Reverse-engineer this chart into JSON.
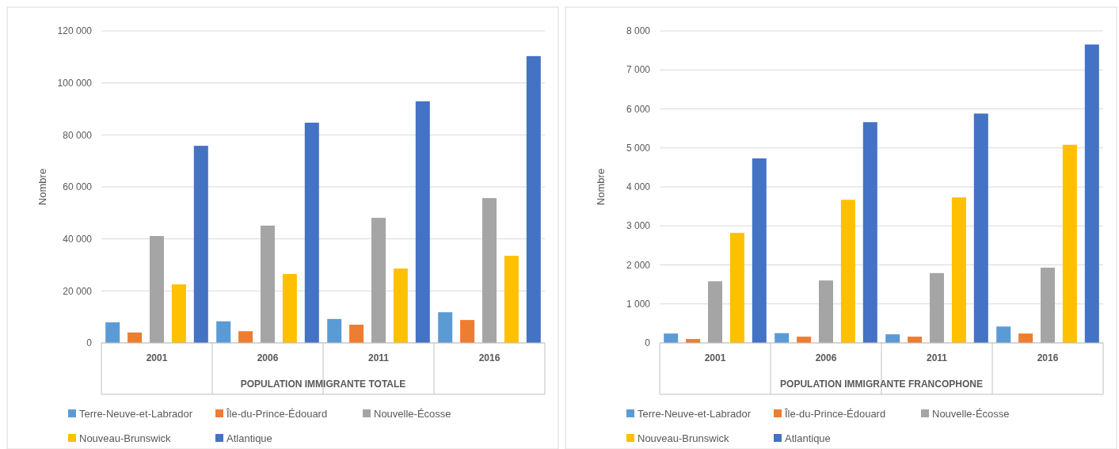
{
  "chart_data": [
    {
      "type": "bar",
      "xlabel": "POPULATION IMMIGRANTE TOTALE",
      "ylabel": "Nombre",
      "categories": [
        "2001",
        "2006",
        "2011",
        "2016"
      ],
      "series": [
        {
          "name": "Terre-Neuve-et-Labrador",
          "color": "#5b9bd5",
          "values": [
            7900,
            8300,
            9200,
            11800
          ]
        },
        {
          "name": "Île-du-Prince-Édouard",
          "color": "#ed7d31",
          "values": [
            4000,
            4500,
            7000,
            8800
          ]
        },
        {
          "name": "Nouvelle-Écosse",
          "color": "#a5a5a5",
          "values": [
            41100,
            45100,
            48100,
            55700
          ]
        },
        {
          "name": "Nouveau-Brunswick",
          "color": "#ffc000",
          "values": [
            22500,
            26500,
            28600,
            33500
          ]
        },
        {
          "name": "Atlantique",
          "color": "#4472c4",
          "values": [
            75800,
            84700,
            92900,
            110300
          ]
        }
      ],
      "ylim": [
        0,
        120000
      ],
      "yticks": [
        0,
        {
          "value": 20000,
          "label": "20 000"
        },
        {
          "value": 40000,
          "label": "40 000"
        },
        {
          "value": 60000,
          "label": "60 000"
        },
        {
          "value": 80000,
          "label": "80 000"
        },
        {
          "value": 100000,
          "label": "100 000"
        },
        {
          "value": 120000,
          "label": "120 000"
        }
      ],
      "grid": "y",
      "legend": "bottom"
    },
    {
      "type": "bar",
      "xlabel": "POPULATION IMMIGRANTE FRANCOPHONE",
      "ylabel": "Nombre",
      "categories": [
        "2001",
        "2006",
        "2011",
        "2016"
      ],
      "series": [
        {
          "name": "Terre-Neuve-et-Labrador",
          "color": "#5b9bd5",
          "values": [
            240,
            250,
            220,
            420
          ]
        },
        {
          "name": "Île-du-Prince-Édouard",
          "color": "#ed7d31",
          "values": [
            100,
            160,
            160,
            240
          ]
        },
        {
          "name": "Nouvelle-Écosse",
          "color": "#a5a5a5",
          "values": [
            1580,
            1600,
            1790,
            1930
          ]
        },
        {
          "name": "Nouveau-Brunswick",
          "color": "#ffc000",
          "values": [
            2820,
            3670,
            3730,
            5080
          ]
        },
        {
          "name": "Atlantique",
          "color": "#4472c4",
          "values": [
            4730,
            5660,
            5880,
            7650
          ]
        }
      ],
      "ylim": [
        0,
        8000
      ],
      "yticks": [
        0,
        {
          "value": 1000,
          "label": "1 000"
        },
        {
          "value": 2000,
          "label": "2 000"
        },
        {
          "value": 3000,
          "label": "3 000"
        },
        {
          "value": 4000,
          "label": "4 000"
        },
        {
          "value": 5000,
          "label": "5 000"
        },
        {
          "value": 6000,
          "label": "6 000"
        },
        {
          "value": 7000,
          "label": "7 000"
        },
        {
          "value": 8000,
          "label": "8 000"
        }
      ],
      "grid": "y",
      "legend": "bottom"
    }
  ]
}
